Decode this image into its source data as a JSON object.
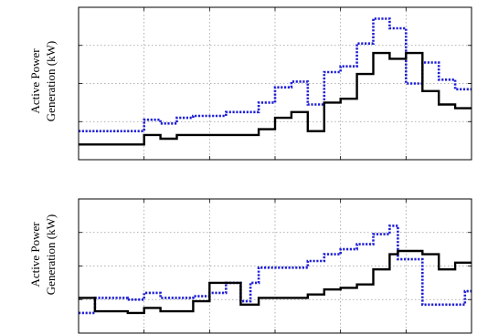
{
  "chart_data": [
    {
      "type": "line",
      "step": true,
      "ylabel": [
        "Active Power",
        "Generation (kW)"
      ],
      "x_ticks": 6,
      "y_ticks": 4,
      "grid": true,
      "ylim": [
        0,
        4
      ],
      "xlim": [
        0,
        24
      ],
      "series": [
        {
          "style": "dotted",
          "color": "#1f1fd6",
          "x": [
            0,
            4,
            4,
            5,
            5,
            6,
            6,
            7,
            7,
            9,
            9,
            11,
            11,
            12,
            12,
            13,
            13,
            14,
            14,
            15,
            15,
            16,
            16,
            17,
            17,
            18,
            18,
            19,
            19,
            20,
            20,
            21,
            21,
            22,
            22,
            23,
            23,
            24
          ],
          "y": [
            0.75,
            0.75,
            1.05,
            1.05,
            0.95,
            0.95,
            1.1,
            1.1,
            1.15,
            1.15,
            1.25,
            1.25,
            1.5,
            1.5,
            1.9,
            1.9,
            2.05,
            2.05,
            1.45,
            1.45,
            2.3,
            2.3,
            2.45,
            2.45,
            3.05,
            3.05,
            3.7,
            3.7,
            3.45,
            3.45,
            2.0,
            2.0,
            2.55,
            2.55,
            2.1,
            2.1,
            1.85,
            1.85
          ]
        },
        {
          "style": "solid",
          "color": "#000000",
          "x": [
            0,
            4,
            4,
            5,
            5,
            6,
            6,
            7,
            7,
            11,
            11,
            12,
            12,
            13,
            13,
            14,
            14,
            15,
            15,
            16,
            16,
            17,
            17,
            18,
            18,
            19,
            19,
            20,
            20,
            21,
            21,
            22,
            22,
            23,
            23,
            24
          ],
          "y": [
            0.4,
            0.4,
            0.65,
            0.65,
            0.55,
            0.55,
            0.65,
            0.65,
            0.65,
            0.65,
            0.8,
            0.8,
            1.1,
            1.1,
            1.25,
            1.25,
            0.75,
            0.75,
            1.5,
            1.5,
            1.6,
            1.6,
            2.25,
            2.25,
            2.8,
            2.8,
            2.65,
            2.65,
            2.8,
            2.8,
            1.8,
            1.8,
            1.45,
            1.45,
            1.35,
            1.35
          ]
        }
      ]
    },
    {
      "type": "line",
      "step": true,
      "ylabel": [
        "Active Power",
        "Generation (kW)"
      ],
      "x_ticks": 6,
      "y_ticks": 4,
      "grid": true,
      "ylim": [
        0,
        4
      ],
      "xlim": [
        0,
        24
      ],
      "series": [
        {
          "style": "dotted",
          "color": "#1f1fd6",
          "x": [
            0,
            1,
            1,
            3,
            3,
            4,
            4,
            5,
            5,
            7,
            7,
            8,
            8,
            9,
            9,
            9.9,
            9.9,
            10.5,
            10.5,
            11,
            11,
            14,
            14,
            15,
            15,
            16,
            16,
            17,
            17,
            18,
            18,
            19,
            19,
            19.5,
            19.5,
            21,
            21,
            23.6,
            23.6,
            24
          ],
          "y": [
            0.6,
            0.6,
            1.05,
            1.05,
            1.0,
            1.0,
            1.2,
            1.2,
            1.05,
            1.05,
            1.1,
            1.1,
            1.2,
            1.2,
            1.5,
            1.5,
            0.95,
            0.95,
            1.5,
            1.5,
            1.95,
            1.95,
            2.15,
            2.15,
            2.35,
            2.35,
            2.5,
            2.5,
            2.65,
            2.65,
            2.95,
            2.95,
            3.2,
            3.2,
            2.2,
            2.2,
            0.85,
            0.85,
            1.25,
            1.25
          ]
        },
        {
          "style": "solid",
          "color": "#000000",
          "x": [
            0,
            1,
            1,
            3,
            3,
            4,
            4,
            5,
            5,
            7,
            7,
            8,
            8,
            9,
            9,
            9.9,
            9.9,
            10.5,
            10.5,
            11,
            11,
            14,
            14,
            15,
            15,
            16,
            16,
            17,
            17,
            18,
            18,
            19,
            19,
            19.5,
            19.5,
            21,
            21,
            22,
            22,
            23,
            23,
            24
          ],
          "y": [
            1.05,
            1.05,
            0.65,
            0.65,
            0.6,
            0.6,
            0.75,
            0.75,
            0.65,
            0.65,
            0.95,
            0.95,
            1.5,
            1.5,
            1.5,
            1.5,
            0.85,
            0.85,
            0.85,
            0.85,
            1.05,
            1.05,
            1.15,
            1.15,
            1.3,
            1.3,
            1.35,
            1.35,
            1.45,
            1.45,
            1.9,
            1.9,
            2.35,
            2.35,
            2.45,
            2.45,
            2.35,
            2.35,
            1.9,
            1.9,
            2.1,
            2.1
          ]
        }
      ]
    }
  ]
}
